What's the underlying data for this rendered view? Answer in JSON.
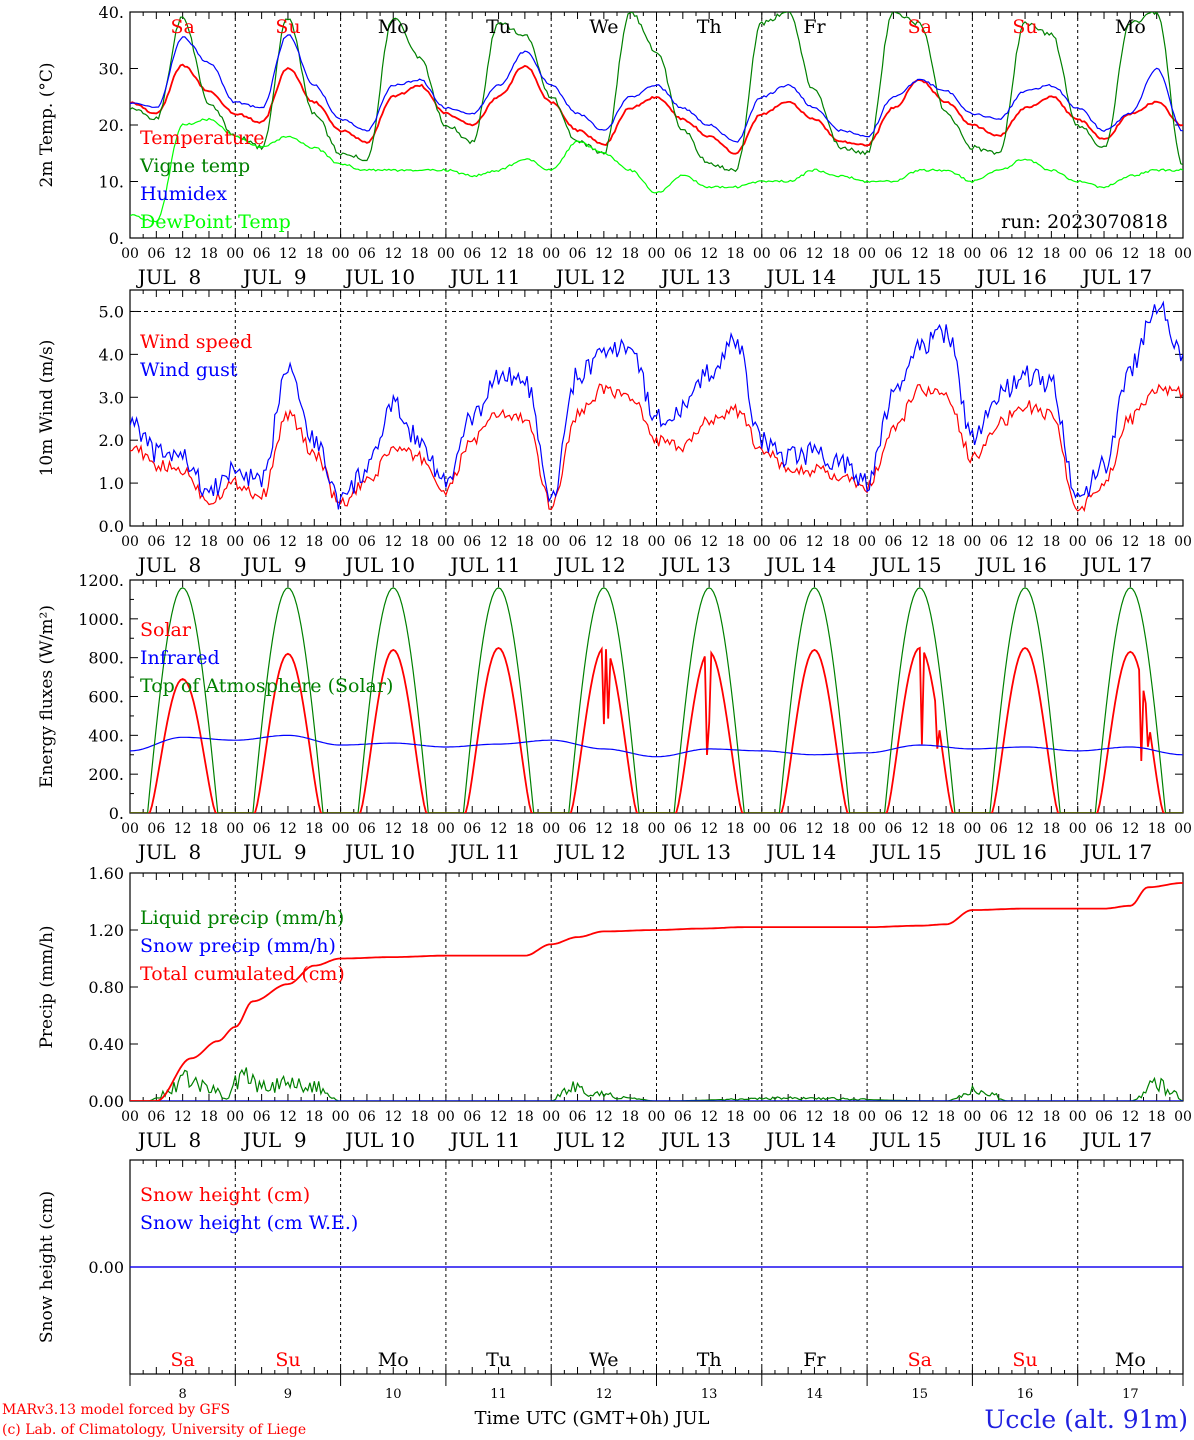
{
  "colors": {
    "red": "#ff0000",
    "green": "#008000",
    "blue": "#0000ff",
    "lime": "#00ff00",
    "purple": "#800080",
    "axis": "#000000"
  },
  "footer": {
    "model_line": "MARv3.13 model forced by GFS",
    "lab_line": "(c) Lab. of Climatology, University of Liege",
    "location": "Uccle (alt. 91m)",
    "xlabel": "Time UTC (GMT+0h) JUL"
  },
  "chart_data": [
    {
      "id": "temperature",
      "type": "line",
      "ylabel": "2m Temp. (°C)",
      "ylim": [
        0,
        40
      ],
      "yticks": [
        0,
        10,
        20,
        30,
        40
      ],
      "ytick_labels": [
        "0.",
        "10.",
        "20.",
        "30.",
        "40."
      ],
      "run_label": "run: 2023070818",
      "legend_placement": "top-left",
      "weekday_row": "top",
      "series": [
        {
          "name": "Temperature",
          "color": "#ff0000",
          "x": [
            0,
            6,
            12,
            18,
            24,
            30,
            36,
            42,
            48,
            54,
            60,
            66,
            72,
            78,
            84,
            90,
            96,
            102,
            108,
            114,
            120,
            126,
            132,
            138,
            144,
            150,
            156,
            162,
            168,
            174,
            180,
            186,
            192,
            198,
            204,
            210,
            216,
            222,
            228,
            234,
            240
          ],
          "y": [
            24,
            22,
            30.5,
            26,
            22,
            20.5,
            30,
            24,
            19,
            17,
            25,
            27,
            22,
            20,
            25,
            30.5,
            24,
            19,
            16.5,
            23,
            25,
            21,
            18,
            15,
            22,
            24,
            21,
            17,
            16.5,
            23,
            28,
            24,
            20,
            18,
            23,
            25,
            21,
            17.5,
            22,
            24,
            20
          ]
        },
        {
          "name": "Vigne temp",
          "color": "#008000",
          "x": [
            0,
            6,
            12,
            18,
            24,
            30,
            36,
            42,
            48,
            54,
            60,
            66,
            72,
            78,
            84,
            90,
            96,
            102,
            108,
            114,
            120,
            126,
            132,
            138,
            144,
            150,
            156,
            162,
            168,
            174,
            180,
            186,
            192,
            198,
            204,
            210,
            216,
            222,
            228,
            234,
            240
          ],
          "y": [
            23,
            21,
            39,
            24,
            18,
            16,
            39,
            22,
            15,
            14,
            39,
            32,
            20,
            17,
            38,
            36,
            25,
            17,
            15,
            40,
            33,
            19,
            13,
            12,
            38,
            40,
            26,
            16,
            15,
            40,
            38,
            22,
            16,
            15,
            38,
            36,
            20,
            16,
            38,
            40,
            13
          ]
        },
        {
          "name": "Humidex",
          "color": "#0000ff",
          "x": [
            0,
            6,
            12,
            18,
            24,
            30,
            36,
            42,
            48,
            54,
            60,
            66,
            72,
            78,
            84,
            90,
            96,
            102,
            108,
            114,
            120,
            126,
            132,
            138,
            144,
            150,
            156,
            162,
            168,
            174,
            180,
            186,
            192,
            198,
            204,
            210,
            216,
            222,
            228,
            234,
            240
          ],
          "y": [
            24,
            23,
            35.5,
            31,
            24,
            23,
            36,
            27,
            21,
            19,
            27,
            28,
            23,
            22,
            27,
            33,
            27,
            22,
            19,
            25,
            27,
            23,
            20,
            17,
            25,
            27,
            23,
            19,
            18,
            25,
            28,
            26,
            22,
            21,
            26,
            27,
            23,
            19,
            22,
            30,
            19
          ]
        },
        {
          "name": "DewPoint Temp",
          "color": "#00ff00",
          "x": [
            0,
            6,
            12,
            18,
            24,
            30,
            36,
            42,
            48,
            54,
            60,
            66,
            72,
            78,
            84,
            90,
            96,
            102,
            108,
            114,
            120,
            126,
            132,
            138,
            144,
            150,
            156,
            162,
            168,
            174,
            180,
            186,
            192,
            198,
            204,
            210,
            216,
            222,
            228,
            234,
            240
          ],
          "y": [
            4,
            3,
            20,
            21,
            18,
            16,
            18,
            16,
            13,
            12,
            12,
            12,
            12,
            11,
            12,
            14,
            12,
            17,
            15,
            12,
            8,
            11,
            9,
            9,
            10,
            10,
            12,
            11,
            10,
            10,
            12,
            12,
            10,
            12,
            14,
            12,
            10,
            9,
            11,
            12,
            12
          ]
        }
      ]
    },
    {
      "id": "wind",
      "type": "line",
      "ylabel": "10m Wind (m/s)",
      "ylim": [
        0,
        5.5
      ],
      "yticks": [
        0,
        1,
        2,
        3,
        4,
        5
      ],
      "ytick_labels": [
        "0.0",
        "1.0",
        "2.0",
        "3.0",
        "4.0",
        "5.0"
      ],
      "legend_placement": "top-left",
      "series": [
        {
          "name": "Wind speed",
          "color": "#ff0000",
          "x": [
            0,
            6,
            12,
            18,
            24,
            30,
            36,
            42,
            48,
            54,
            60,
            66,
            72,
            78,
            84,
            90,
            96,
            102,
            108,
            114,
            120,
            126,
            132,
            138,
            144,
            150,
            156,
            162,
            168,
            174,
            180,
            186,
            192,
            198,
            204,
            210,
            216,
            222,
            228,
            234,
            240
          ],
          "y": [
            1.9,
            1.4,
            1.3,
            0.6,
            1.0,
            0.7,
            2.6,
            1.7,
            0.5,
            1.0,
            1.8,
            1.6,
            0.8,
            2.0,
            2.6,
            2.5,
            0.5,
            2.6,
            3.2,
            3.0,
            2.0,
            1.8,
            2.5,
            2.7,
            1.8,
            1.3,
            1.3,
            1.1,
            0.9,
            2.2,
            3.2,
            3.0,
            1.6,
            2.4,
            2.8,
            2.6,
            0.4,
            1.0,
            2.5,
            3.2,
            3.1
          ]
        },
        {
          "name": "Wind gust",
          "color": "#0000ff",
          "x": [
            0,
            6,
            12,
            18,
            24,
            30,
            36,
            42,
            48,
            54,
            60,
            66,
            72,
            78,
            84,
            90,
            96,
            102,
            108,
            114,
            120,
            126,
            132,
            138,
            144,
            150,
            156,
            162,
            168,
            174,
            180,
            186,
            192,
            198,
            204,
            210,
            216,
            222,
            228,
            234,
            240
          ],
          "y": [
            2.5,
            1.7,
            1.6,
            0.8,
            1.3,
            1.0,
            3.8,
            2.0,
            0.6,
            1.3,
            2.8,
            2.0,
            1.0,
            2.5,
            3.5,
            3.4,
            0.6,
            3.5,
            4.0,
            4.2,
            2.5,
            2.7,
            3.6,
            4.3,
            2.0,
            1.6,
            1.7,
            1.5,
            1.0,
            3.0,
            4.2,
            4.5,
            2.1,
            3.1,
            3.5,
            3.3,
            0.6,
            1.4,
            3.7,
            5.2,
            4.0
          ]
        }
      ]
    },
    {
      "id": "energy",
      "type": "line",
      "ylabel": "Energy fluxes (W/m²)",
      "ylim": [
        0,
        1200
      ],
      "yticks": [
        0,
        200,
        400,
        600,
        800,
        1000,
        1200
      ],
      "ytick_labels": [
        "0.",
        "200.",
        "400.",
        "600.",
        "800.",
        "1000.",
        "1200."
      ],
      "legend_placement": "top-left",
      "series": [
        {
          "name": "Solar",
          "color": "#ff0000",
          "daily_peaks": [
            690,
            820,
            840,
            850,
            850,
            830,
            840,
            850,
            850,
            830
          ]
        },
        {
          "name": "Infrared",
          "color": "#0000ff",
          "x": [
            0,
            12,
            24,
            36,
            48,
            60,
            72,
            84,
            96,
            108,
            120,
            132,
            144,
            156,
            168,
            180,
            192,
            204,
            216,
            228,
            240
          ],
          "y": [
            320,
            390,
            375,
            400,
            350,
            360,
            340,
            355,
            375,
            330,
            290,
            330,
            320,
            300,
            310,
            350,
            330,
            340,
            320,
            340,
            300
          ]
        },
        {
          "name": "Top of Atmosphere (Solar)",
          "color": "#008000",
          "daily_peak": 1160
        }
      ]
    },
    {
      "id": "precip",
      "type": "line",
      "ylabel": "Precip (mm/h)",
      "ylim": [
        0,
        1.6
      ],
      "yticks": [
        0,
        0.4,
        0.8,
        1.2,
        1.6
      ],
      "ytick_labels": [
        "0.00",
        "0.40",
        "0.80",
        "1.20",
        "1.60"
      ],
      "legend_placement": "top-left",
      "series": [
        {
          "name": "Liquid precip (mm/h)",
          "color": "#008000",
          "x": [
            0,
            4,
            8,
            12,
            18,
            22,
            26,
            30,
            36,
            42,
            48,
            72,
            96,
            100,
            106,
            114,
            120,
            150,
            186,
            192,
            196,
            200,
            228,
            234,
            238,
            240
          ],
          "y": [
            0,
            0,
            0.05,
            0.15,
            0.1,
            0.02,
            0.22,
            0.1,
            0.12,
            0.1,
            0,
            0,
            0,
            0.1,
            0.05,
            0.02,
            0,
            0.02,
            0,
            0.07,
            0.05,
            0,
            0,
            0.12,
            0.05,
            0
          ]
        },
        {
          "name": "Snow precip (mm/h)",
          "color": "#0000ff",
          "x": [
            0,
            240
          ],
          "y": [
            0,
            0
          ]
        },
        {
          "name": "Total cumulated (cm)",
          "color": "#ff0000",
          "x": [
            0,
            6,
            14,
            20,
            24,
            28,
            36,
            42,
            48,
            60,
            72,
            84,
            90,
            96,
            102,
            108,
            120,
            130,
            140,
            150,
            168,
            180,
            186,
            192,
            204,
            216,
            222,
            228,
            232,
            240
          ],
          "y": [
            0,
            0,
            0.3,
            0.42,
            0.52,
            0.7,
            0.82,
            0.95,
            1.0,
            1.01,
            1.02,
            1.02,
            1.02,
            1.1,
            1.15,
            1.19,
            1.2,
            1.21,
            1.22,
            1.22,
            1.22,
            1.23,
            1.24,
            1.34,
            1.35,
            1.35,
            1.35,
            1.37,
            1.5,
            1.53
          ]
        }
      ]
    },
    {
      "id": "snow",
      "type": "line",
      "ylabel": "Snow height (cm)",
      "ylim": [
        -1,
        1
      ],
      "yticks": [
        0
      ],
      "ytick_labels": [
        "0.00"
      ],
      "legend_placement": "top-left",
      "weekday_row": "bottom",
      "series": [
        {
          "name": "Snow height (cm)",
          "color": "#ff0000",
          "x": [
            0,
            240
          ],
          "y": [
            0,
            0
          ]
        },
        {
          "name": "Snow height (cm W.E.)",
          "color": "#0000ff",
          "x": [
            0,
            240
          ],
          "y": [
            0,
            0
          ]
        }
      ]
    }
  ],
  "x_axis": {
    "x_range_hours": [
      0,
      240
    ],
    "hour_labels": [
      "00",
      "06",
      "12",
      "18"
    ],
    "last_hour_label": "00",
    "date_labels": [
      "JUL  8",
      "JUL  9",
      "JUL 10",
      "JUL 11",
      "JUL 12",
      "JUL 13",
      "JUL 14",
      "JUL 15",
      "JUL 16",
      "JUL 17"
    ],
    "weekdays": [
      "Sa",
      "Su",
      "Mo",
      "Tu",
      "We",
      "Th",
      "Fr",
      "Sa",
      "Su",
      "Mo"
    ],
    "weekday_colors": [
      "#ff0000",
      "#ff0000",
      "#000000",
      "#000000",
      "#000000",
      "#000000",
      "#000000",
      "#ff0000",
      "#ff0000",
      "#000000"
    ],
    "day_numbers": [
      "8",
      "9",
      "10",
      "11",
      "12",
      "13",
      "14",
      "15",
      "16",
      "17"
    ]
  }
}
